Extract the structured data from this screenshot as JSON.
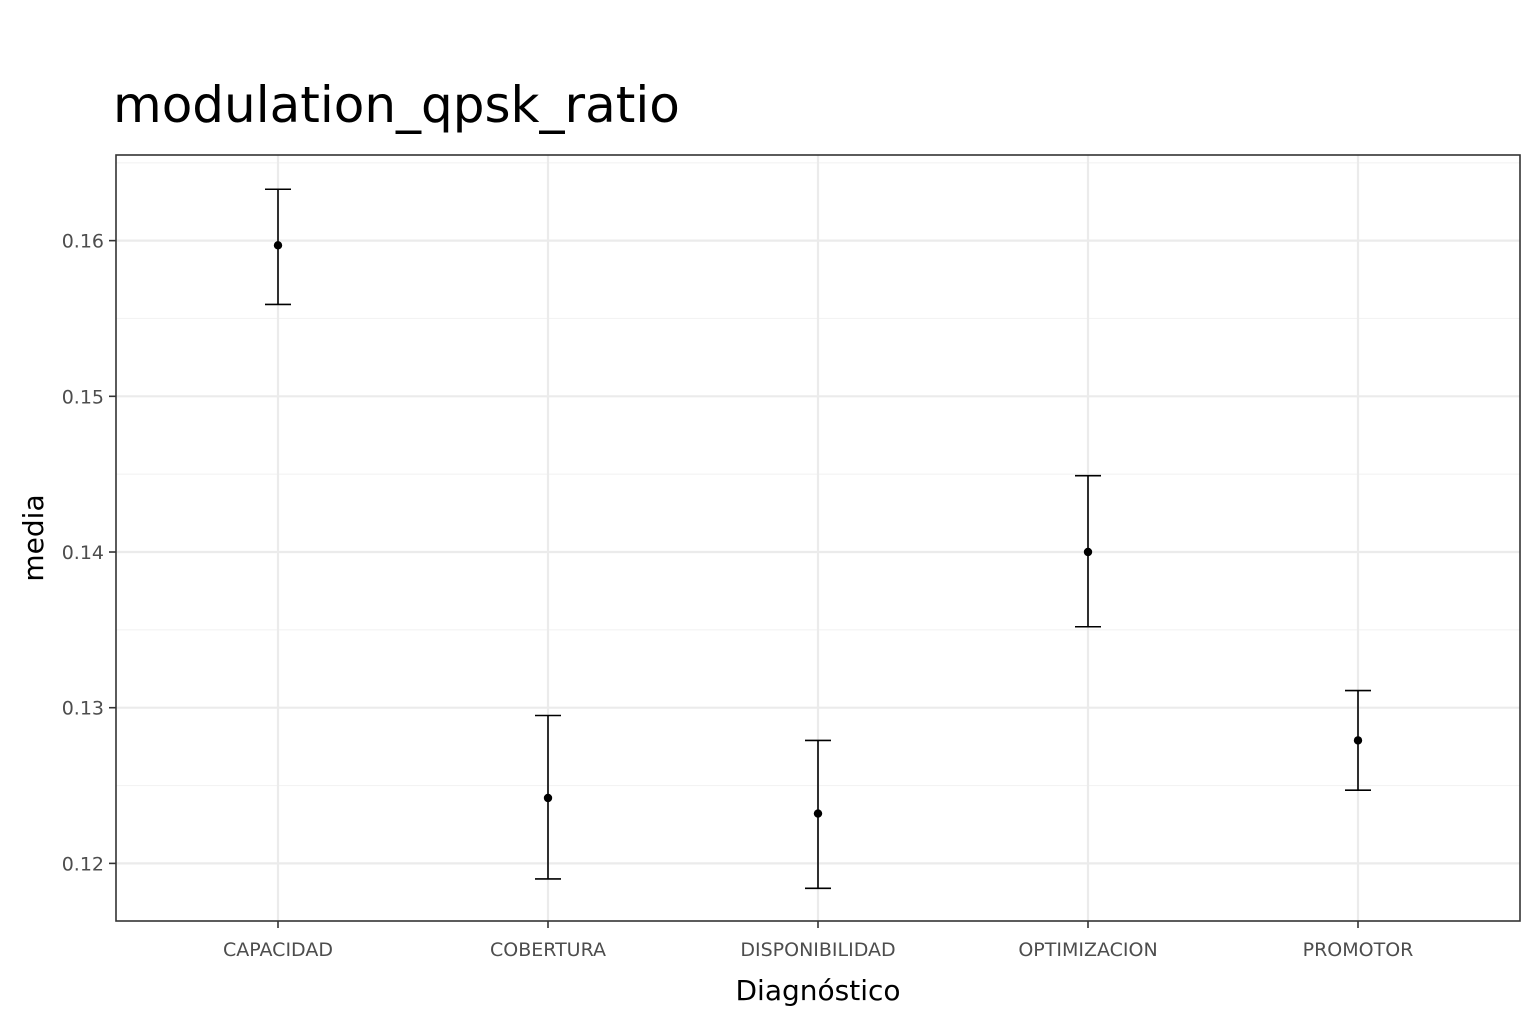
{
  "chart_data": {
    "type": "errorbar",
    "title": "modulation_qpsk_ratio",
    "xlabel": "Diagnóstico",
    "ylabel": "media",
    "categories": [
      "CAPACIDAD",
      "COBERTURA",
      "DISPONIBILIDAD",
      "OPTIMIZACION",
      "PROMOTOR"
    ],
    "series": [
      {
        "mean": [
          0.1597,
          0.1242,
          0.1232,
          0.14,
          0.1279
        ],
        "lower": [
          0.1559,
          0.119,
          0.1184,
          0.1352,
          0.1247
        ],
        "upper": [
          0.1633,
          0.1295,
          0.1279,
          0.1449,
          0.1311
        ]
      }
    ],
    "ylim": [
      0.1163,
      0.1655
    ],
    "yticks": [
      0.12,
      0.13,
      0.14,
      0.15,
      0.16
    ],
    "ytick_labels": [
      "0.12",
      "0.13",
      "0.14",
      "0.15",
      "0.16"
    ],
    "grid": true,
    "legend": "none"
  }
}
